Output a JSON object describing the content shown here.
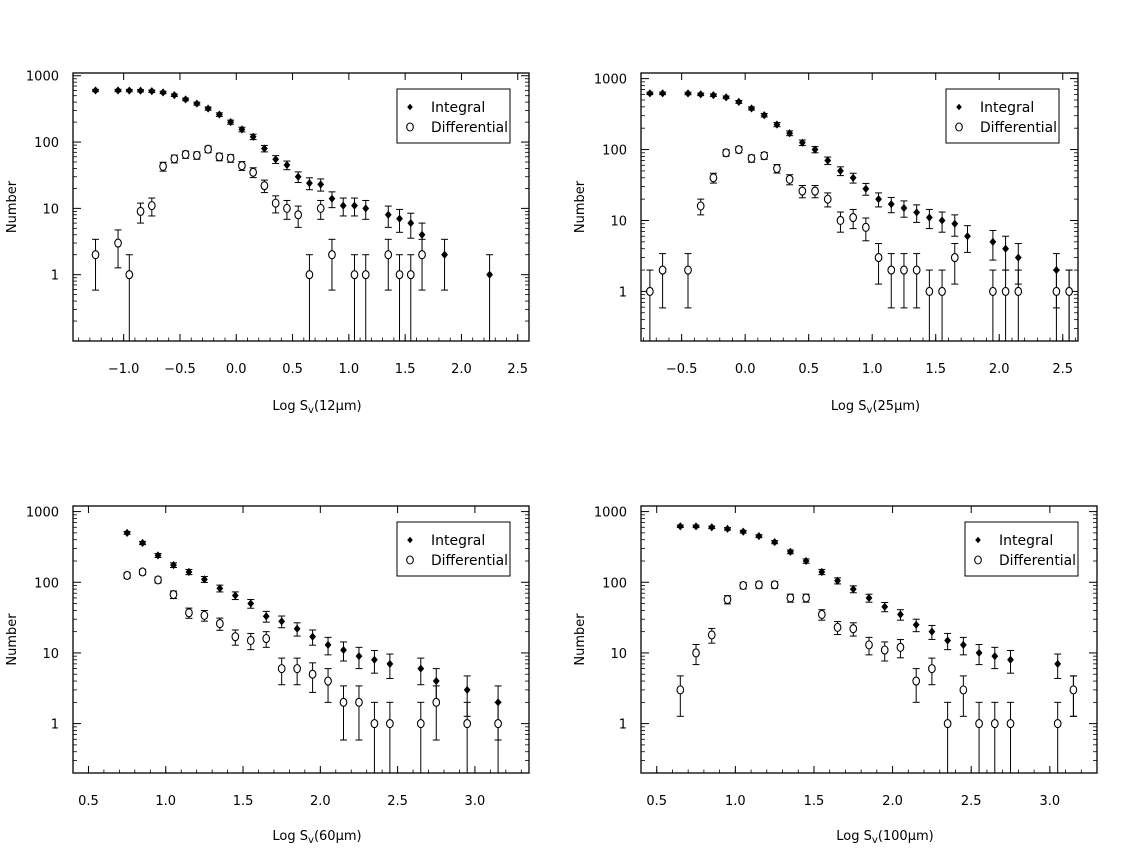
{
  "chart_data": [
    {
      "type": "scatter",
      "panel": "12um",
      "xlabel": {
        "prefix": "Log S",
        "sub": "v",
        "suffix": "(12µm)"
      },
      "ylabel": "Number",
      "yscale": "log",
      "xlim": [
        -1.45,
        2.6
      ],
      "ylim": [
        0.1,
        1100
      ],
      "xticks": [
        -1.0,
        -0.5,
        0.0,
        0.5,
        1.0,
        1.5,
        2.0,
        2.5
      ],
      "xtick_labels": [
        "−1.0",
        "−0.5",
        "0.0",
        "0.5",
        "1.0",
        "1.5",
        "2.0",
        "2.5"
      ],
      "yticks": [
        1,
        10,
        100,
        1000
      ],
      "ytick_labels": [
        "1",
        "10",
        "100",
        "1000"
      ],
      "grid": false,
      "legend_position": "top-right",
      "legend": [
        "Integral",
        "Differential"
      ],
      "series": [
        {
          "name": "Integral",
          "marker": "filled-diamond",
          "points": [
            [
              -1.25,
              600
            ],
            [
              -1.05,
              600
            ],
            [
              -0.95,
              598
            ],
            [
              -0.85,
              595
            ],
            [
              -0.75,
              585
            ],
            [
              -0.65,
              560
            ],
            [
              -0.55,
              510
            ],
            [
              -0.45,
              440
            ],
            [
              -0.35,
              380
            ],
            [
              -0.25,
              320
            ],
            [
              -0.15,
              260
            ],
            [
              -0.05,
              200
            ],
            [
              0.05,
              155
            ],
            [
              0.15,
              120
            ],
            [
              0.25,
              80
            ],
            [
              0.35,
              55
            ],
            [
              0.45,
              45
            ],
            [
              0.55,
              30
            ],
            [
              0.65,
              24
            ],
            [
              0.75,
              23
            ],
            [
              0.85,
              14
            ],
            [
              0.95,
              11
            ],
            [
              1.05,
              11
            ],
            [
              1.15,
              10
            ],
            [
              1.35,
              8
            ],
            [
              1.45,
              7
            ],
            [
              1.55,
              6
            ],
            [
              1.65,
              4
            ],
            [
              1.85,
              2
            ],
            [
              2.25,
              1
            ]
          ]
        },
        {
          "name": "Differential",
          "marker": "open-circle",
          "points": [
            [
              -1.25,
              2
            ],
            [
              -1.05,
              3
            ],
            [
              -0.95,
              1
            ],
            [
              -0.85,
              9
            ],
            [
              -0.75,
              11
            ],
            [
              -0.65,
              43
            ],
            [
              -0.55,
              56
            ],
            [
              -0.45,
              65
            ],
            [
              -0.35,
              63
            ],
            [
              -0.25,
              78
            ],
            [
              -0.15,
              60
            ],
            [
              -0.05,
              57
            ],
            [
              0.05,
              44
            ],
            [
              0.15,
              35
            ],
            [
              0.25,
              22
            ],
            [
              0.35,
              12
            ],
            [
              0.45,
              10
            ],
            [
              0.55,
              8
            ],
            [
              0.65,
              1
            ],
            [
              0.75,
              10
            ],
            [
              0.85,
              2
            ],
            [
              1.05,
              1
            ],
            [
              1.15,
              1
            ],
            [
              1.35,
              2
            ],
            [
              1.45,
              1
            ],
            [
              1.55,
              1
            ],
            [
              1.65,
              2
            ]
          ]
        }
      ]
    },
    {
      "type": "scatter",
      "panel": "25um",
      "xlabel": {
        "prefix": "Log S",
        "sub": "v",
        "suffix": "(25µm)"
      },
      "ylabel": "Number",
      "yscale": "log",
      "xlim": [
        -0.82,
        2.62
      ],
      "ylim": [
        0.2,
        1200
      ],
      "xticks": [
        -0.5,
        0.0,
        0.5,
        1.0,
        1.5,
        2.0,
        2.5
      ],
      "xtick_labels": [
        "−0.5",
        "0.0",
        "0.5",
        "1.0",
        "1.5",
        "2.0",
        "2.5"
      ],
      "yticks": [
        1,
        10,
        100,
        1000
      ],
      "ytick_labels": [
        "1",
        "10",
        "100",
        "1000"
      ],
      "grid": false,
      "legend_position": "top-right",
      "legend": [
        "Integral",
        "Differential"
      ],
      "series": [
        {
          "name": "Integral",
          "marker": "filled-diamond",
          "points": [
            [
              -0.75,
              620
            ],
            [
              -0.65,
              620
            ],
            [
              -0.45,
              618
            ],
            [
              -0.35,
              600
            ],
            [
              -0.25,
              585
            ],
            [
              -0.15,
              545
            ],
            [
              -0.05,
              470
            ],
            [
              0.05,
              380
            ],
            [
              0.15,
              305
            ],
            [
              0.25,
              225
            ],
            [
              0.35,
              170
            ],
            [
              0.45,
              125
            ],
            [
              0.55,
              100
            ],
            [
              0.65,
              70
            ],
            [
              0.75,
              50
            ],
            [
              0.85,
              40
            ],
            [
              0.95,
              28
            ],
            [
              1.05,
              20
            ],
            [
              1.15,
              17
            ],
            [
              1.25,
              15
            ],
            [
              1.35,
              13
            ],
            [
              1.45,
              11
            ],
            [
              1.55,
              10
            ],
            [
              1.65,
              9
            ],
            [
              1.75,
              6
            ],
            [
              1.95,
              5
            ],
            [
              2.05,
              4
            ],
            [
              2.15,
              3
            ],
            [
              2.45,
              2
            ],
            [
              2.55,
              1
            ]
          ]
        },
        {
          "name": "Differential",
          "marker": "open-circle",
          "points": [
            [
              -0.75,
              1
            ],
            [
              -0.65,
              2
            ],
            [
              -0.45,
              2
            ],
            [
              -0.35,
              16
            ],
            [
              -0.25,
              40
            ],
            [
              -0.15,
              90
            ],
            [
              -0.05,
              100
            ],
            [
              0.05,
              75
            ],
            [
              0.15,
              82
            ],
            [
              0.25,
              54
            ],
            [
              0.35,
              38
            ],
            [
              0.45,
              26
            ],
            [
              0.55,
              26
            ],
            [
              0.65,
              20
            ],
            [
              0.75,
              10
            ],
            [
              0.85,
              11
            ],
            [
              0.95,
              8
            ],
            [
              1.05,
              3
            ],
            [
              1.15,
              2
            ],
            [
              1.25,
              2
            ],
            [
              1.35,
              2
            ],
            [
              1.45,
              1
            ],
            [
              1.55,
              1
            ],
            [
              1.65,
              3
            ],
            [
              1.95,
              1
            ],
            [
              2.05,
              1
            ],
            [
              2.15,
              1
            ],
            [
              2.45,
              1
            ],
            [
              2.55,
              1
            ]
          ]
        }
      ]
    },
    {
      "type": "scatter",
      "panel": "60um",
      "xlabel": {
        "prefix": "Log S",
        "sub": "v",
        "suffix": "(60µm)"
      },
      "ylabel": "Number",
      "yscale": "log",
      "xlim": [
        0.4,
        3.35
      ],
      "ylim": [
        0.2,
        1200
      ],
      "xticks": [
        0.5,
        1.0,
        1.5,
        2.0,
        2.5,
        3.0
      ],
      "xtick_labels": [
        "0.5",
        "1.0",
        "1.5",
        "2.0",
        "2.5",
        "3.0"
      ],
      "yticks": [
        1,
        10,
        100,
        1000
      ],
      "ytick_labels": [
        "1",
        "10",
        "100",
        "1000"
      ],
      "grid": false,
      "legend_position": "top-right",
      "legend": [
        "Integral",
        "Differential"
      ],
      "series": [
        {
          "name": "Integral",
          "marker": "filled-diamond",
          "points": [
            [
              0.75,
              500
            ],
            [
              0.85,
              360
            ],
            [
              0.95,
              240
            ],
            [
              1.05,
              175
            ],
            [
              1.15,
              140
            ],
            [
              1.25,
              110
            ],
            [
              1.35,
              82
            ],
            [
              1.45,
              65
            ],
            [
              1.55,
              50
            ],
            [
              1.65,
              33
            ],
            [
              1.75,
              28
            ],
            [
              1.85,
              22
            ],
            [
              1.95,
              17
            ],
            [
              2.05,
              13
            ],
            [
              2.15,
              11
            ],
            [
              2.25,
              9
            ],
            [
              2.35,
              8
            ],
            [
              2.45,
              7
            ],
            [
              2.65,
              6
            ],
            [
              2.75,
              4
            ],
            [
              2.95,
              3
            ],
            [
              3.15,
              2
            ]
          ]
        },
        {
          "name": "Differential",
          "marker": "open-circle",
          "points": [
            [
              0.75,
              125
            ],
            [
              0.85,
              140
            ],
            [
              0.95,
              108
            ],
            [
              1.05,
              67
            ],
            [
              1.15,
              37
            ],
            [
              1.25,
              34
            ],
            [
              1.35,
              26
            ],
            [
              1.45,
              17
            ],
            [
              1.55,
              15
            ],
            [
              1.65,
              16
            ],
            [
              1.75,
              6
            ],
            [
              1.85,
              6
            ],
            [
              1.95,
              5
            ],
            [
              2.05,
              4
            ],
            [
              2.15,
              2
            ],
            [
              2.25,
              2
            ],
            [
              2.35,
              1
            ],
            [
              2.45,
              1
            ],
            [
              2.65,
              1
            ],
            [
              2.75,
              2
            ],
            [
              2.95,
              1
            ],
            [
              3.15,
              1
            ]
          ]
        }
      ]
    },
    {
      "type": "scatter",
      "panel": "100um",
      "xlabel": {
        "prefix": "Log S",
        "sub": "v",
        "suffix": "(100µm)"
      },
      "ylabel": "Number",
      "yscale": "log",
      "xlim": [
        0.4,
        3.3
      ],
      "ylim": [
        0.2,
        1200
      ],
      "xticks": [
        0.5,
        1.0,
        1.5,
        2.0,
        2.5,
        3.0
      ],
      "xtick_labels": [
        "0.5",
        "1.0",
        "1.5",
        "2.0",
        "2.5",
        "3.0"
      ],
      "yticks": [
        1,
        10,
        100,
        1000
      ],
      "ytick_labels": [
        "1",
        "10",
        "100",
        "1000"
      ],
      "grid": false,
      "legend_position": "top-right",
      "legend": [
        "Integral",
        "Differential"
      ],
      "series": [
        {
          "name": "Integral",
          "marker": "filled-diamond",
          "points": [
            [
              0.65,
              620
            ],
            [
              0.75,
              618
            ],
            [
              0.85,
              600
            ],
            [
              0.95,
              570
            ],
            [
              1.05,
              520
            ],
            [
              1.15,
              450
            ],
            [
              1.25,
              370
            ],
            [
              1.35,
              270
            ],
            [
              1.45,
              200
            ],
            [
              1.55,
              140
            ],
            [
              1.65,
              105
            ],
            [
              1.75,
              80
            ],
            [
              1.85,
              60
            ],
            [
              1.95,
              45
            ],
            [
              2.05,
              35
            ],
            [
              2.15,
              25
            ],
            [
              2.25,
              20
            ],
            [
              2.35,
              15
            ],
            [
              2.45,
              13
            ],
            [
              2.55,
              10
            ],
            [
              2.65,
              9
            ],
            [
              2.75,
              8
            ],
            [
              3.05,
              7
            ],
            [
              3.15,
              3
            ]
          ]
        },
        {
          "name": "Differential",
          "marker": "open-circle",
          "points": [
            [
              0.65,
              3
            ],
            [
              0.75,
              10
            ],
            [
              0.85,
              18
            ],
            [
              0.95,
              57
            ],
            [
              1.05,
              90
            ],
            [
              1.15,
              92
            ],
            [
              1.25,
              92
            ],
            [
              1.35,
              60
            ],
            [
              1.45,
              60
            ],
            [
              1.55,
              35
            ],
            [
              1.65,
              23
            ],
            [
              1.75,
              22
            ],
            [
              1.85,
              13
            ],
            [
              1.95,
              11
            ],
            [
              2.05,
              12
            ],
            [
              2.15,
              4
            ],
            [
              2.25,
              6
            ],
            [
              2.35,
              1
            ],
            [
              2.45,
              3
            ],
            [
              2.55,
              1
            ],
            [
              2.65,
              1
            ],
            [
              2.75,
              1
            ],
            [
              3.05,
              1
            ],
            [
              3.15,
              3
            ]
          ]
        }
      ]
    }
  ]
}
